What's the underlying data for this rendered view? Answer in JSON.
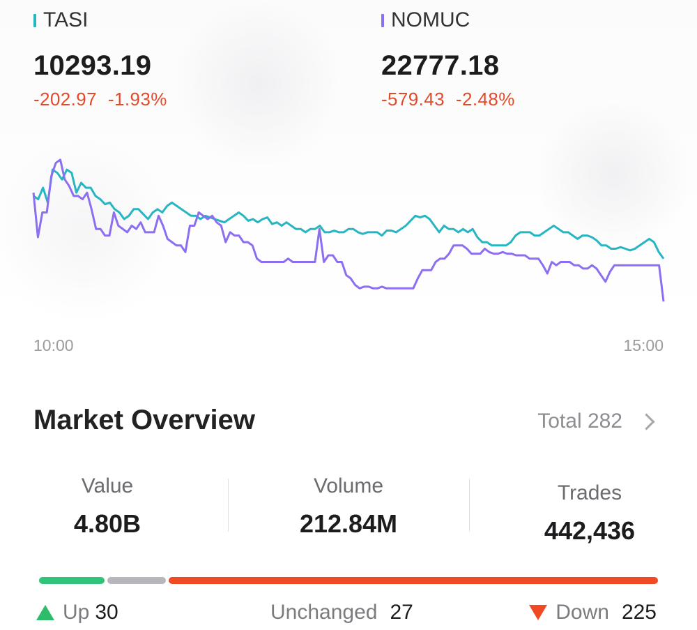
{
  "indices": [
    {
      "name": "TASI",
      "value": "10293.19",
      "change": "-202.97",
      "change_pct": "-1.93%",
      "color": "#26b5c2"
    },
    {
      "name": "NOMUC",
      "value": "22777.18",
      "change": "-579.43",
      "change_pct": "-2.48%",
      "color": "#8c6ef0"
    }
  ],
  "chart_data": {
    "type": "line",
    "x_start": "10:00",
    "x_end": "15:00",
    "series": [
      {
        "name": "TASI",
        "color": "#26b5c2",
        "values": [
          80,
          78,
          85,
          76,
          96,
          94,
          90,
          96,
          94,
          82,
          88,
          85,
          85,
          80,
          78,
          75,
          76,
          72,
          70,
          66,
          68,
          72,
          72,
          69,
          66,
          70,
          72,
          70,
          74,
          76,
          74,
          72,
          70,
          68,
          68,
          66,
          68,
          67,
          66,
          65,
          64,
          66,
          68,
          70,
          68,
          65,
          66,
          64,
          66,
          67,
          63,
          64,
          62,
          64,
          62,
          60,
          60,
          58,
          60,
          60,
          62,
          58,
          58,
          59,
          58,
          58,
          60,
          60,
          58,
          57,
          58,
          58,
          58,
          56,
          59,
          59,
          58,
          60,
          62,
          65,
          68,
          67,
          68,
          66,
          62,
          58,
          62,
          60,
          60,
          58,
          60,
          58,
          60,
          55,
          52,
          52,
          50,
          50,
          50,
          50,
          52,
          56,
          58,
          58,
          58,
          56,
          56,
          58,
          60,
          62,
          60,
          58,
          58,
          56,
          54,
          56,
          56,
          55,
          53,
          50,
          50,
          48,
          48,
          49,
          48,
          47,
          48,
          50,
          52,
          54,
          52,
          46,
          42
        ]
      },
      {
        "name": "NOMUC",
        "color": "#8c6ef0",
        "values": [
          82,
          55,
          70,
          70,
          92,
          100,
          102,
          90,
          86,
          80,
          80,
          78,
          82,
          72,
          60,
          60,
          56,
          56,
          70,
          62,
          60,
          58,
          62,
          60,
          64,
          58,
          58,
          58,
          68,
          62,
          54,
          52,
          50,
          50,
          46,
          62,
          62,
          70,
          68,
          66,
          68,
          64,
          62,
          52,
          58,
          56,
          56,
          52,
          52,
          50,
          42,
          40,
          40,
          40,
          40,
          40,
          40,
          42,
          40,
          40,
          40,
          40,
          40,
          40,
          60,
          40,
          44,
          44,
          40,
          40,
          32,
          30,
          26,
          24,
          25,
          25,
          24,
          24,
          25,
          24,
          24,
          24,
          24,
          24,
          24,
          24,
          30,
          35,
          35,
          35,
          40,
          42,
          42,
          45,
          50,
          50,
          50,
          48,
          45,
          45,
          45,
          48,
          46,
          45,
          45,
          46,
          45,
          45,
          44,
          44,
          44,
          42,
          42,
          42,
          38,
          33,
          40,
          38,
          40,
          40,
          40,
          38,
          38,
          36,
          36,
          38,
          36,
          32,
          28,
          34,
          38,
          38,
          38,
          38,
          38,
          38,
          38,
          38,
          38,
          38,
          38,
          16
        ]
      }
    ],
    "ylim": [
      0,
      110
    ],
    "grid": false,
    "legend": "none"
  },
  "overview": {
    "title": "Market Overview",
    "total_label": "Total 282",
    "stats": [
      {
        "label": "Value",
        "value": "4.80B"
      },
      {
        "label": "Volume",
        "value": "212.84M"
      },
      {
        "label": "Trades",
        "value": "442,436"
      }
    ],
    "breadth": {
      "up_label": "Up",
      "up": 30,
      "unchanged_label": "Unchanged",
      "unchanged": 27,
      "down_label": "Down",
      "down": 225,
      "up_color": "#2fc47a",
      "unchanged_color": "#b7b7bb",
      "down_color": "#f04a25"
    }
  }
}
